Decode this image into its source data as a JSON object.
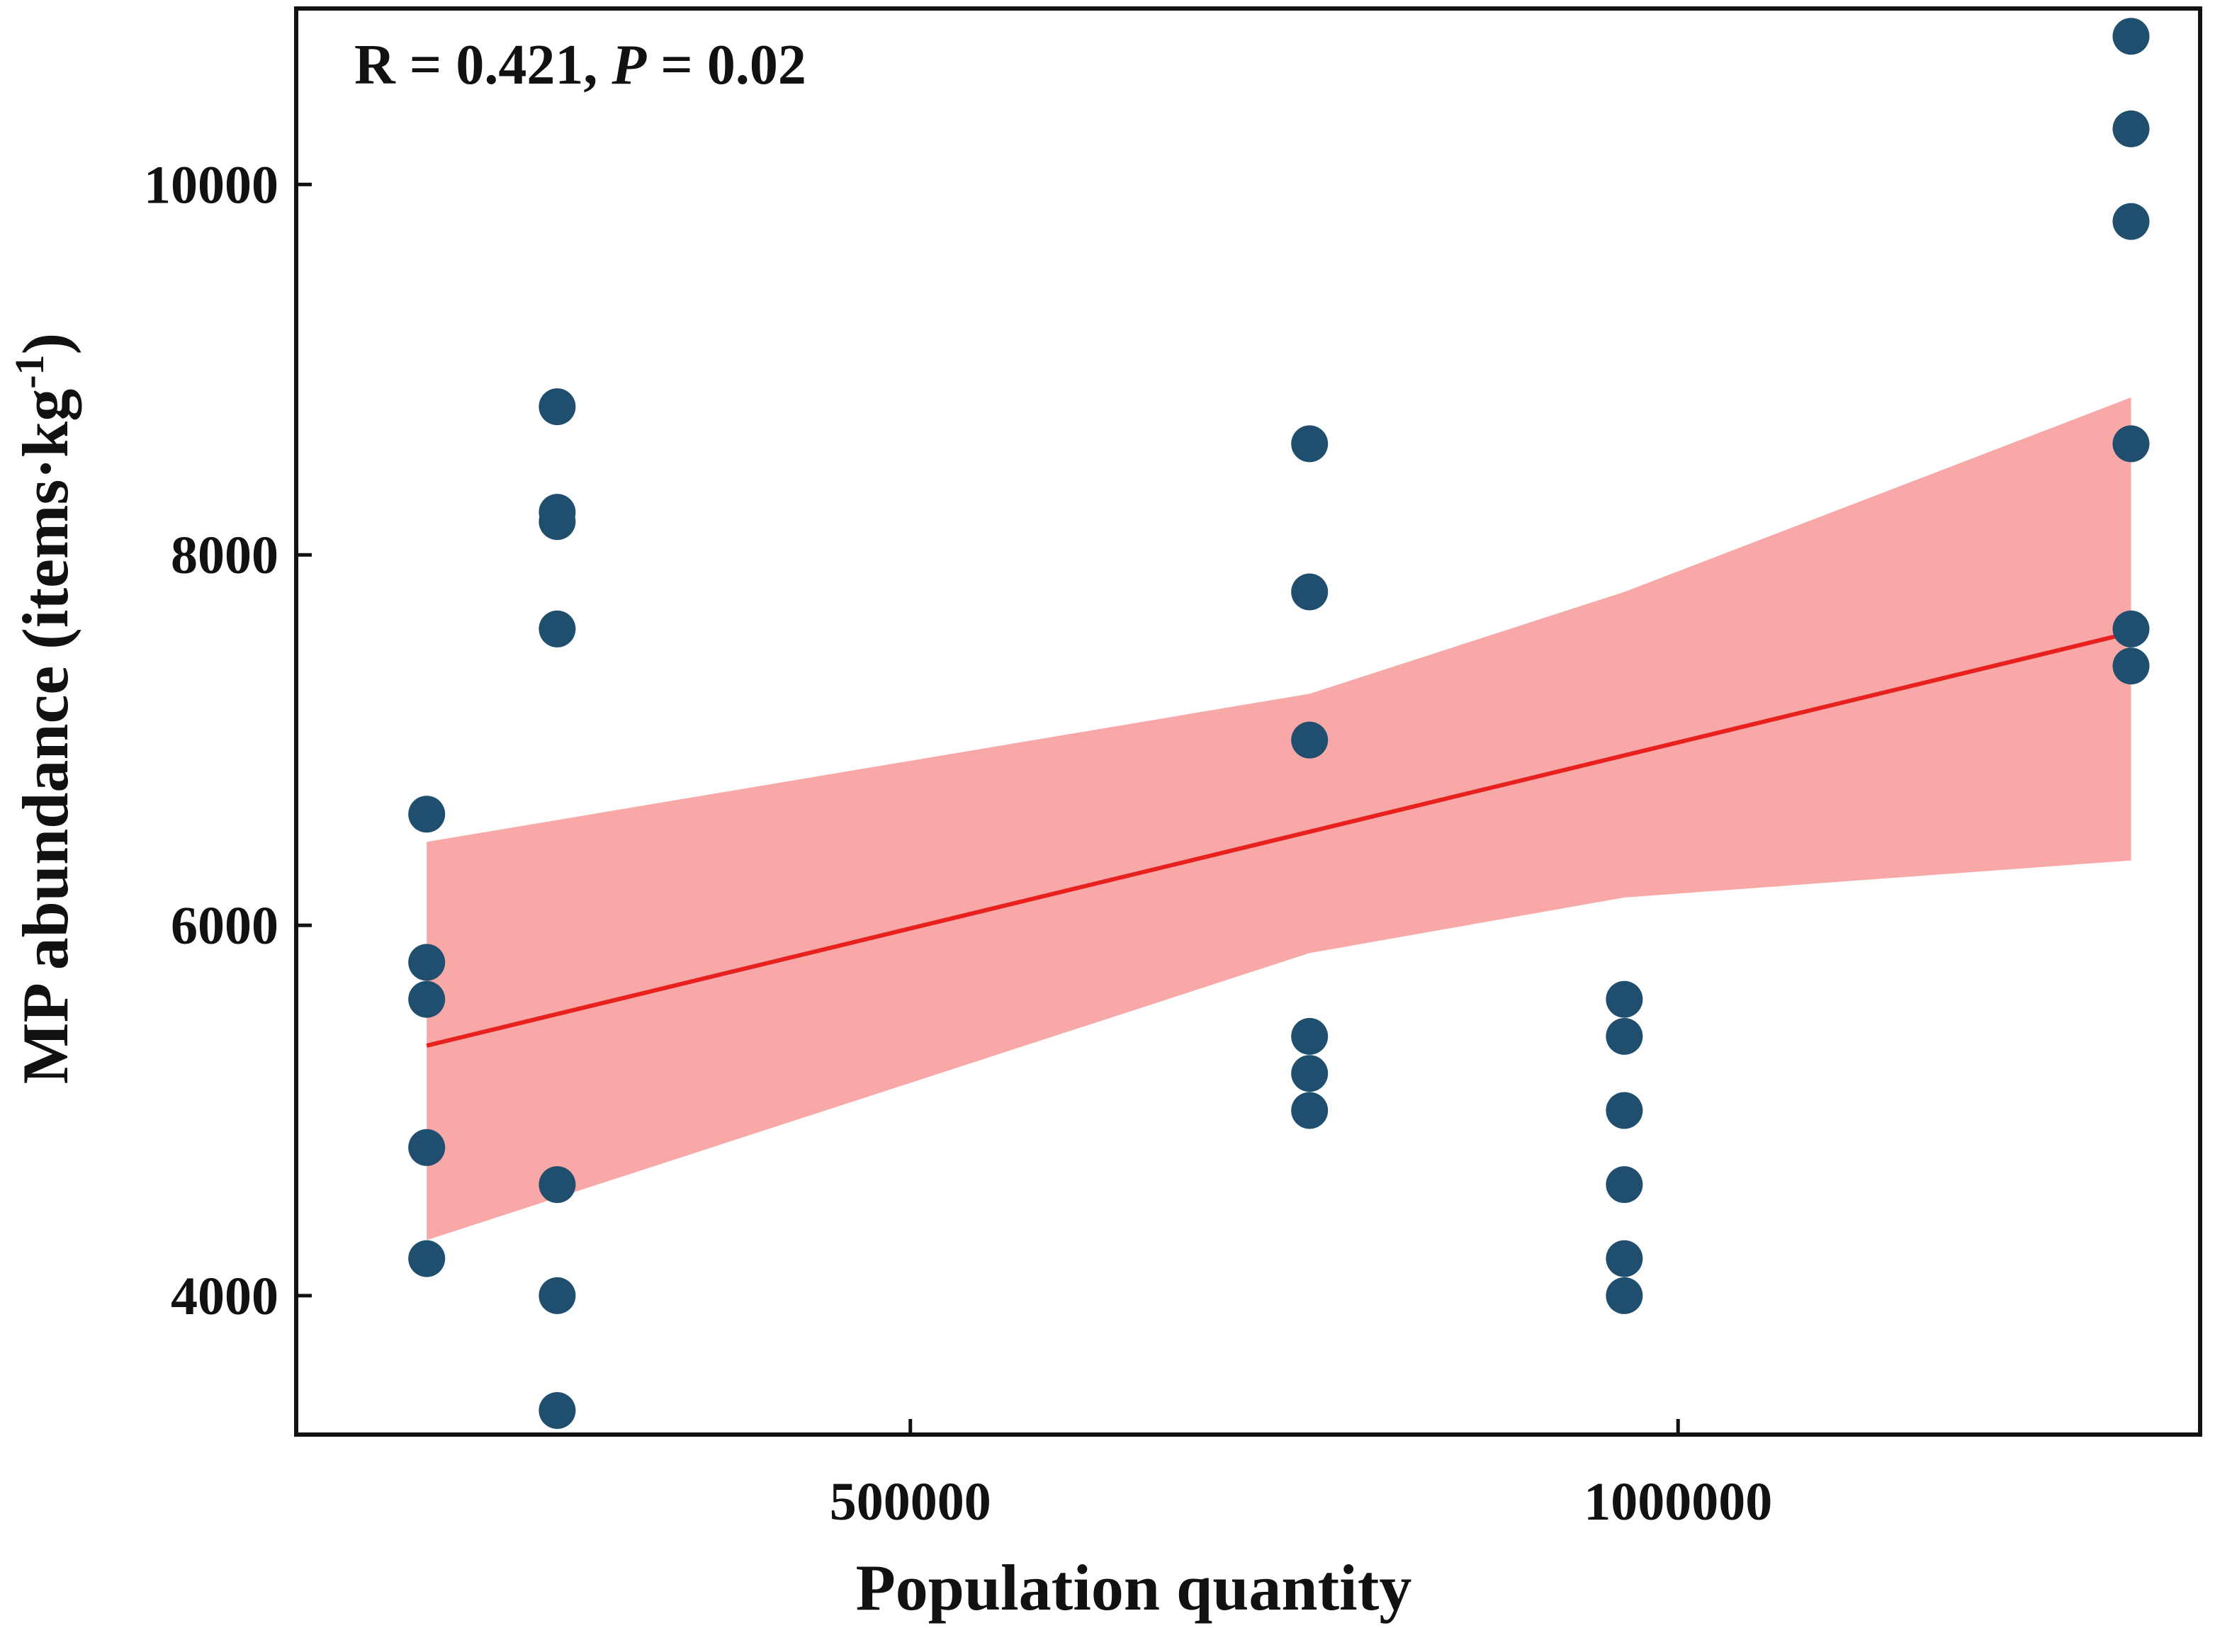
{
  "chart_data": {
    "type": "scatter",
    "title": "",
    "xlabel": "Population quantity",
    "ylabel": {
      "main": "MP abundance (items",
      "dot": "·",
      "unit": "kg",
      "exponent": "-1",
      "close": ")"
    },
    "annotation": {
      "r_text": "R = 0.421, ",
      "p_label": "P",
      "p_text": " = 0.02"
    },
    "xlim": [
      100000,
      1340000
    ],
    "ylim": [
      3250,
      10950
    ],
    "x_ticks": [
      500000,
      1000000
    ],
    "x_tick_labels": [
      "500000",
      "1000000"
    ],
    "y_ticks": [
      4000,
      6000,
      8000,
      10000
    ],
    "y_tick_labels": [
      "4000",
      "6000",
      "8000",
      "10000"
    ],
    "grid": false,
    "legend": "none",
    "points": [
      {
        "x": 185000,
        "y": 6600
      },
      {
        "x": 185000,
        "y": 5800
      },
      {
        "x": 185000,
        "y": 5600
      },
      {
        "x": 185000,
        "y": 4800
      },
      {
        "x": 185000,
        "y": 4200
      },
      {
        "x": 270000,
        "y": 8800
      },
      {
        "x": 270000,
        "y": 8230
      },
      {
        "x": 270000,
        "y": 8180
      },
      {
        "x": 270000,
        "y": 7600
      },
      {
        "x": 270000,
        "y": 4600
      },
      {
        "x": 270000,
        "y": 4000
      },
      {
        "x": 270000,
        "y": 3380
      },
      {
        "x": 760000,
        "y": 8600
      },
      {
        "x": 760000,
        "y": 7800
      },
      {
        "x": 760000,
        "y": 7000
      },
      {
        "x": 760000,
        "y": 5400
      },
      {
        "x": 760000,
        "y": 5200
      },
      {
        "x": 760000,
        "y": 5000
      },
      {
        "x": 965000,
        "y": 5600
      },
      {
        "x": 965000,
        "y": 5400
      },
      {
        "x": 965000,
        "y": 5000
      },
      {
        "x": 965000,
        "y": 4600
      },
      {
        "x": 965000,
        "y": 4200
      },
      {
        "x": 965000,
        "y": 4000
      },
      {
        "x": 1295000,
        "y": 10800
      },
      {
        "x": 1295000,
        "y": 10300
      },
      {
        "x": 1295000,
        "y": 9800
      },
      {
        "x": 1295000,
        "y": 8600
      },
      {
        "x": 1295000,
        "y": 7600
      },
      {
        "x": 1295000,
        "y": 7400
      }
    ],
    "fit_line": {
      "x": [
        185000,
        1295000
      ],
      "y": [
        5350,
        7580
      ]
    },
    "confidence_band": {
      "x": [
        185000,
        760000,
        965000,
        1295000
      ],
      "upper": [
        6450,
        7250,
        7800,
        8850
      ],
      "lower": [
        4300,
        5850,
        6150,
        6350
      ]
    },
    "colors": {
      "points": "#1f4e6e",
      "fit_line": "#e8201e",
      "band": "#f9a8a8",
      "axis": "#111111"
    }
  }
}
